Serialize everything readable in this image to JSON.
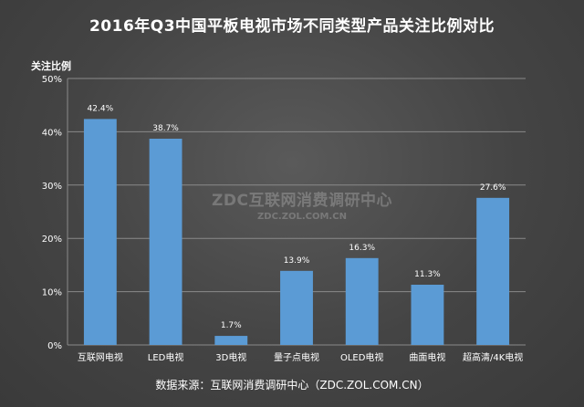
{
  "chart_data": {
    "type": "bar",
    "title": "2016年Q3中国平板电视市场不同类型产品关注比例对比",
    "ylabel": "关注比例",
    "xlabel": "",
    "categories": [
      "互联网电视",
      "LED电视",
      "3D电视",
      "量子点电视",
      "OLED电视",
      "曲面电视",
      "超高清/4K电视"
    ],
    "values": [
      42.4,
      38.7,
      1.7,
      13.9,
      16.3,
      11.3,
      27.6
    ],
    "value_labels": [
      "42.4%",
      "38.7%",
      "1.7%",
      "13.9%",
      "16.3%",
      "11.3%",
      "27.6%"
    ],
    "ylim": [
      0,
      50
    ],
    "yticks": [
      0,
      10,
      20,
      30,
      40,
      50
    ],
    "ytick_labels": [
      "0%",
      "10%",
      "20%",
      "30%",
      "40%",
      "50%"
    ],
    "grid": true,
    "bar_color": "#5b9bd5",
    "legend": "none"
  },
  "watermark": {
    "line1": "ZDC互联网消费调研中心",
    "line2": "ZDC.ZOL.COM.CN"
  },
  "source": "数据来源：互联网消费调研中心（ZDC.ZOL.COM.CN）"
}
